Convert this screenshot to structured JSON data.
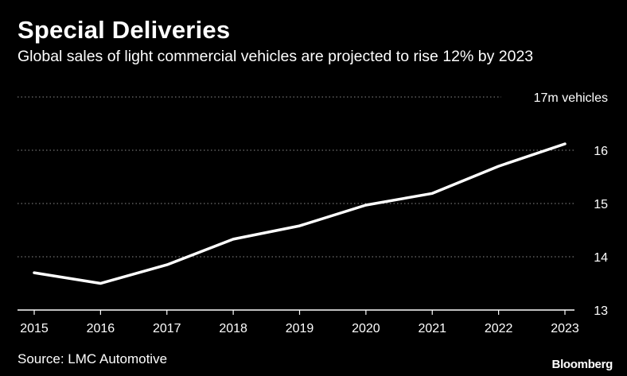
{
  "header": {
    "title": "Special Deliveries",
    "subtitle": "Global sales of light commercial vehicles are projected to rise 12% by 2023"
  },
  "footer": {
    "source": "Source: LMC Automotive",
    "brand": "Bloomberg"
  },
  "colors": {
    "background": "#000000",
    "line": "#ffffff",
    "grid": "#8c8c8c",
    "text": "#ffffff"
  },
  "chart_data": {
    "type": "line",
    "title": "Special Deliveries",
    "subtitle": "Global sales of light commercial vehicles are projected to rise 12% by 2023",
    "categories": [
      "2015",
      "2016",
      "2017",
      "2018",
      "2019",
      "2020",
      "2021",
      "2022",
      "2023"
    ],
    "series": [
      {
        "values": [
          13.7,
          13.5,
          13.85,
          14.33,
          14.58,
          14.97,
          15.19,
          15.7,
          16.12
        ]
      }
    ],
    "ylim": [
      13,
      17
    ],
    "yticks": [
      13,
      14,
      15,
      16,
      17
    ],
    "ytick_labels": [
      "13",
      "14",
      "15",
      "16",
      "17m vehicles"
    ],
    "y_axis_position": "right",
    "grid": "horizontal dotted",
    "xlabel": "",
    "ylabel": ""
  }
}
